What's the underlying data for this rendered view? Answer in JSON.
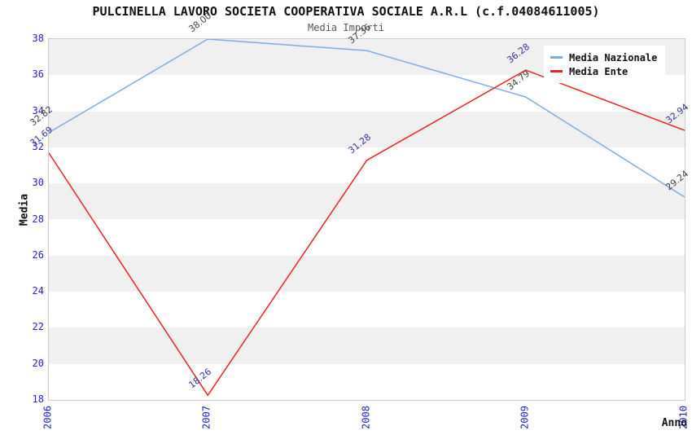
{
  "title": "PULCINELLA LAVORO SOCIETA COOPERATIVA SOCIALE A.R.L (c.f.04084611005)",
  "subtitle": "Media Importi",
  "chart_data": {
    "type": "line",
    "title": "PULCINELLA LAVORO SOCIETA COOPERATIVA SOCIALE A.R.L (c.f.04084611005)",
    "subtitle": "Media Importi",
    "xlabel": "Anno",
    "ylabel": "Media",
    "categories": [
      "2006",
      "2007",
      "2008",
      "2009",
      "2010"
    ],
    "series": [
      {
        "name": "Media Nazionale",
        "color": "#7cacе4",
        "line_color": "#7cace4",
        "label_color": "#444444",
        "values": [
          32.82,
          38.0,
          37.36,
          34.79,
          29.24
        ]
      },
      {
        "name": "Media Ente",
        "color": "#ee2222",
        "line_color": "#ee2222",
        "label_color": "#333399",
        "values": [
          31.69,
          18.26,
          31.28,
          36.28,
          32.94
        ]
      }
    ],
    "ylim": [
      18,
      38
    ],
    "ytick_step": 2,
    "yticks": [
      18,
      20,
      22,
      24,
      26,
      28,
      30,
      32,
      34,
      36,
      38
    ],
    "grid": "alternating-horizontal-bands",
    "band_color": "#f0f0f0",
    "plot_border_color": "#cccccc",
    "tick_label_color": "#2222cc",
    "legend_position": "top-right",
    "value_label_decimals": 2
  }
}
